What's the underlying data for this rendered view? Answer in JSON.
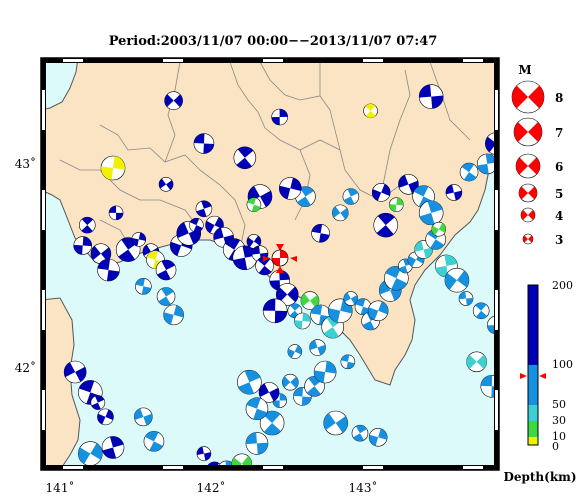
{
  "title": "Period:2003/11/07 00:00−−2013/11/07 07:47",
  "axes": {
    "x_labels": [
      "141˚",
      "142˚",
      "143˚"
    ],
    "y_labels": [
      "43˚",
      "42˚"
    ]
  },
  "colors": {
    "land": "#fbe4c4",
    "sea": "#dcfafa",
    "lake": "#dcfafa",
    "boundary": "#888888",
    "coast": "#555555",
    "event": "#ff0000"
  },
  "magnitude_legend": {
    "title": "M",
    "items": [
      "8",
      "7",
      "6",
      "5",
      "4",
      "3"
    ]
  },
  "depth_scale": {
    "title": "Depth(km)",
    "tick_labels": [
      "200",
      "100",
      "50",
      "30",
      "10",
      "0"
    ],
    "bands": [
      {
        "label": "0-10",
        "color": "#f0f000"
      },
      {
        "label": "10-30",
        "color": "#40d840"
      },
      {
        "label": "30-50",
        "color": "#3cd0d0"
      },
      {
        "label": "50-100",
        "color": "#1890e0"
      },
      {
        "label": "100-200",
        "color": "#0000b4"
      }
    ],
    "marker_depth": "100"
  },
  "event_marker": {
    "label": "latest event",
    "color": "#ff0000"
  },
  "mechanisms": [
    {
      "lon": 141.37,
      "lat": 42.78,
      "depth": 120
    },
    {
      "lon": 141.18,
      "lat": 42.72,
      "depth": 110
    },
    {
      "lon": 141.15,
      "lat": 42.62,
      "depth": 130
    },
    {
      "lon": 141.27,
      "lat": 42.58,
      "depth": 115
    },
    {
      "lon": 141.32,
      "lat": 42.5,
      "depth": 140
    },
    {
      "lon": 141.45,
      "lat": 42.6,
      "depth": 105
    },
    {
      "lon": 141.52,
      "lat": 42.65,
      "depth": 125
    },
    {
      "lon": 141.6,
      "lat": 42.59,
      "depth": 110
    },
    {
      "lon": 141.63,
      "lat": 42.55,
      "depth": 5
    },
    {
      "lon": 141.7,
      "lat": 42.5,
      "depth": 140
    },
    {
      "lon": 141.8,
      "lat": 42.62,
      "depth": 105
    },
    {
      "lon": 141.85,
      "lat": 42.68,
      "depth": 125
    },
    {
      "lon": 141.9,
      "lat": 42.72,
      "depth": 115
    },
    {
      "lon": 141.95,
      "lat": 42.8,
      "depth": 120
    },
    {
      "lon": 142.02,
      "lat": 42.72,
      "depth": 130
    },
    {
      "lon": 142.08,
      "lat": 42.66,
      "depth": 110
    },
    {
      "lon": 142.15,
      "lat": 42.6,
      "depth": 120
    },
    {
      "lon": 142.22,
      "lat": 42.56,
      "depth": 135
    },
    {
      "lon": 142.28,
      "lat": 42.64,
      "depth": 100
    },
    {
      "lon": 142.32,
      "lat": 42.58,
      "depth": 145
    },
    {
      "lon": 142.35,
      "lat": 42.52,
      "depth": 120
    },
    {
      "lon": 142.45,
      "lat": 42.45,
      "depth": 130
    },
    {
      "lon": 142.5,
      "lat": 42.38,
      "depth": 110
    },
    {
      "lon": 142.42,
      "lat": 42.3,
      "depth": 125
    },
    {
      "lon": 142.55,
      "lat": 42.3,
      "depth": 80
    },
    {
      "lon": 142.6,
      "lat": 42.25,
      "depth": 40
    },
    {
      "lon": 142.65,
      "lat": 42.35,
      "depth": 25
    },
    {
      "lon": 142.72,
      "lat": 42.28,
      "depth": 60
    },
    {
      "lon": 142.8,
      "lat": 42.22,
      "depth": 45
    },
    {
      "lon": 142.85,
      "lat": 42.3,
      "depth": 70
    },
    {
      "lon": 142.92,
      "lat": 42.36,
      "depth": 55
    },
    {
      "lon": 143.0,
      "lat": 42.32,
      "depth": 65
    },
    {
      "lon": 143.05,
      "lat": 42.25,
      "depth": 50
    },
    {
      "lon": 143.1,
      "lat": 42.3,
      "depth": 75
    },
    {
      "lon": 143.18,
      "lat": 42.4,
      "depth": 60
    },
    {
      "lon": 143.22,
      "lat": 42.46,
      "depth": 85
    },
    {
      "lon": 143.28,
      "lat": 42.52,
      "depth": 55
    },
    {
      "lon": 143.35,
      "lat": 42.55,
      "depth": 70
    },
    {
      "lon": 143.4,
      "lat": 42.6,
      "depth": 45
    },
    {
      "lon": 143.48,
      "lat": 42.65,
      "depth": 60
    },
    {
      "lon": 143.55,
      "lat": 42.52,
      "depth": 40
    },
    {
      "lon": 143.62,
      "lat": 42.45,
      "depth": 55
    },
    {
      "lon": 143.68,
      "lat": 42.36,
      "depth": 65
    },
    {
      "lon": 143.78,
      "lat": 42.3,
      "depth": 75
    },
    {
      "lon": 143.88,
      "lat": 42.23,
      "depth": 60
    },
    {
      "lon": 143.75,
      "lat": 42.05,
      "depth": 45
    },
    {
      "lon": 143.85,
      "lat": 41.93,
      "depth": 50
    },
    {
      "lon": 143.15,
      "lat": 42.72,
      "depth": 130
    },
    {
      "lon": 143.22,
      "lat": 42.82,
      "depth": 25
    },
    {
      "lon": 142.85,
      "lat": 42.78,
      "depth": 95
    },
    {
      "lon": 142.72,
      "lat": 42.68,
      "depth": 110
    },
    {
      "lon": 142.62,
      "lat": 42.86,
      "depth": 90
    },
    {
      "lon": 142.52,
      "lat": 42.9,
      "depth": 120
    },
    {
      "lon": 142.32,
      "lat": 42.86,
      "depth": 105
    },
    {
      "lon": 142.28,
      "lat": 42.82,
      "depth": 20
    },
    {
      "lon": 142.92,
      "lat": 42.86,
      "depth": 85
    },
    {
      "lon": 143.12,
      "lat": 42.88,
      "depth": 140
    },
    {
      "lon": 143.3,
      "lat": 42.92,
      "depth": 150
    },
    {
      "lon": 143.4,
      "lat": 42.86,
      "depth": 80
    },
    {
      "lon": 143.45,
      "lat": 42.78,
      "depth": 60
    },
    {
      "lon": 143.5,
      "lat": 42.7,
      "depth": 20
    },
    {
      "lon": 143.6,
      "lat": 42.88,
      "depth": 105
    },
    {
      "lon": 143.7,
      "lat": 42.98,
      "depth": 90
    },
    {
      "lon": 143.82,
      "lat": 43.02,
      "depth": 65
    },
    {
      "lon": 143.88,
      "lat": 43.12,
      "depth": 120
    },
    {
      "lon": 143.45,
      "lat": 43.35,
      "depth": 110
    },
    {
      "lon": 143.05,
      "lat": 43.28,
      "depth": 5
    },
    {
      "lon": 142.45,
      "lat": 43.25,
      "depth": 130
    },
    {
      "lon": 141.75,
      "lat": 43.33,
      "depth": 120
    },
    {
      "lon": 141.95,
      "lat": 43.12,
      "depth": 125
    },
    {
      "lon": 142.22,
      "lat": 43.05,
      "depth": 110
    },
    {
      "lon": 141.35,
      "lat": 43.0,
      "depth": 5
    },
    {
      "lon": 141.7,
      "lat": 42.92,
      "depth": 120
    },
    {
      "lon": 141.55,
      "lat": 42.42,
      "depth": 80
    },
    {
      "lon": 141.7,
      "lat": 42.37,
      "depth": 75
    },
    {
      "lon": 141.75,
      "lat": 42.28,
      "depth": 70
    },
    {
      "lon": 141.1,
      "lat": 42.0,
      "depth": 110
    },
    {
      "lon": 141.2,
      "lat": 41.9,
      "depth": 120
    },
    {
      "lon": 141.25,
      "lat": 41.85,
      "depth": 140
    },
    {
      "lon": 141.3,
      "lat": 41.78,
      "depth": 100
    },
    {
      "lon": 141.55,
      "lat": 41.78,
      "depth": 85
    },
    {
      "lon": 141.62,
      "lat": 41.66,
      "depth": 75
    },
    {
      "lon": 141.35,
      "lat": 41.63,
      "depth": 150
    },
    {
      "lon": 141.2,
      "lat": 41.6,
      "depth": 60
    },
    {
      "lon": 141.95,
      "lat": 41.6,
      "depth": 100
    },
    {
      "lon": 142.02,
      "lat": 41.52,
      "depth": 115
    },
    {
      "lon": 142.1,
      "lat": 41.52,
      "depth": 70
    },
    {
      "lon": 142.2,
      "lat": 41.55,
      "depth": 25
    },
    {
      "lon": 142.3,
      "lat": 41.65,
      "depth": 65
    },
    {
      "lon": 142.4,
      "lat": 41.75,
      "depth": 80
    },
    {
      "lon": 142.45,
      "lat": 41.86,
      "depth": 95
    },
    {
      "lon": 142.52,
      "lat": 41.95,
      "depth": 70
    },
    {
      "lon": 142.6,
      "lat": 41.88,
      "depth": 85
    },
    {
      "lon": 142.68,
      "lat": 41.93,
      "depth": 90
    },
    {
      "lon": 142.75,
      "lat": 42.0,
      "depth": 75
    },
    {
      "lon": 142.82,
      "lat": 41.75,
      "depth": 70
    },
    {
      "lon": 142.9,
      "lat": 42.05,
      "depth": 55
    },
    {
      "lon": 142.98,
      "lat": 41.7,
      "depth": 65
    },
    {
      "lon": 143.1,
      "lat": 41.68,
      "depth": 50
    },
    {
      "lon": 142.38,
      "lat": 41.9,
      "depth": 100
    },
    {
      "lon": 142.3,
      "lat": 41.82,
      "depth": 95
    },
    {
      "lon": 142.25,
      "lat": 41.95,
      "depth": 90
    },
    {
      "lon": 142.55,
      "lat": 42.1,
      "depth": 80
    },
    {
      "lon": 142.7,
      "lat": 42.12,
      "depth": 70
    }
  ]
}
